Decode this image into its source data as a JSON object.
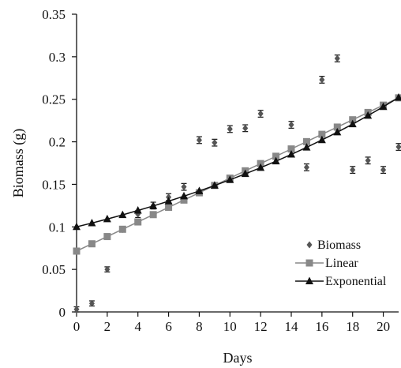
{
  "chart_data": {
    "type": "scatter",
    "xlabel": "Days",
    "ylabel": "Biomass (g)",
    "xlim": [
      0,
      21
    ],
    "ylim": [
      0,
      0.35
    ],
    "x_ticks": [
      0,
      2,
      4,
      6,
      8,
      10,
      12,
      14,
      16,
      18,
      20
    ],
    "x_tick_labels": [
      "0",
      "2",
      "4",
      "6",
      "8",
      "10",
      "12",
      "14",
      "16",
      "18",
      "20"
    ],
    "y_ticks": [
      0,
      0.05,
      0.1,
      0.15,
      0.2,
      0.25,
      0.3,
      0.35
    ],
    "y_tick_labels": [
      "0",
      "0.05",
      "0.1",
      "0.15",
      "0.2",
      "0.25",
      "0.3",
      "0.35"
    ],
    "grid": false,
    "legend_position": "bottom-right",
    "series": [
      {
        "name": "Biomass",
        "marker": "diamond",
        "color": "#555555",
        "error_bars": true,
        "x": [
          0,
          1,
          2,
          3,
          4,
          5,
          6,
          7,
          8,
          9,
          10,
          11,
          12,
          14,
          15,
          16,
          17,
          18,
          19,
          20,
          21
        ],
        "y": [
          0.003,
          0.01,
          0.05,
          0.097,
          0.115,
          0.125,
          0.135,
          0.147,
          0.202,
          0.199,
          0.215,
          0.216,
          0.233,
          0.22,
          0.17,
          0.273,
          0.298,
          0.167,
          0.178,
          0.167,
          0.194
        ],
        "err": [
          0.003,
          0.003,
          0.003,
          0.003,
          0.004,
          0.004,
          0.004,
          0.004,
          0.004,
          0.004,
          0.004,
          0.004,
          0.004,
          0.004,
          0.004,
          0.004,
          0.004,
          0.004,
          0.004,
          0.004,
          0.004
        ]
      },
      {
        "name": "Linear",
        "marker": "square",
        "color": "#888888",
        "x": [
          0,
          1,
          2,
          3,
          4,
          5,
          6,
          7,
          8,
          9,
          10,
          11,
          12,
          13,
          14,
          15,
          16,
          17,
          18,
          19,
          20,
          21
        ],
        "y": [
          0.0715,
          0.0801,
          0.0886,
          0.0972,
          0.1058,
          0.1144,
          0.123,
          0.1315,
          0.1401,
          0.1487,
          0.1573,
          0.1659,
          0.1744,
          0.183,
          0.1916,
          0.2002,
          0.2088,
          0.2173,
          0.2259,
          0.2345,
          0.2431,
          0.2517
        ]
      },
      {
        "name": "Exponential",
        "marker": "triangle",
        "color": "#111111",
        "x": [
          0,
          1,
          2,
          3,
          4,
          5,
          6,
          7,
          8,
          9,
          10,
          11,
          12,
          13,
          14,
          15,
          16,
          17,
          18,
          19,
          20,
          21
        ],
        "y": [
          0.1,
          0.1045,
          0.1092,
          0.1141,
          0.1193,
          0.1246,
          0.1302,
          0.1361,
          0.1422,
          0.1486,
          0.1553,
          0.1623,
          0.1696,
          0.1772,
          0.1852,
          0.1935,
          0.2022,
          0.2113,
          0.2208,
          0.2308,
          0.2412,
          0.252
        ]
      }
    ]
  },
  "colors": {
    "axis": "#111111",
    "biomass": "#555555",
    "linear": "#888888",
    "exponential": "#111111"
  }
}
